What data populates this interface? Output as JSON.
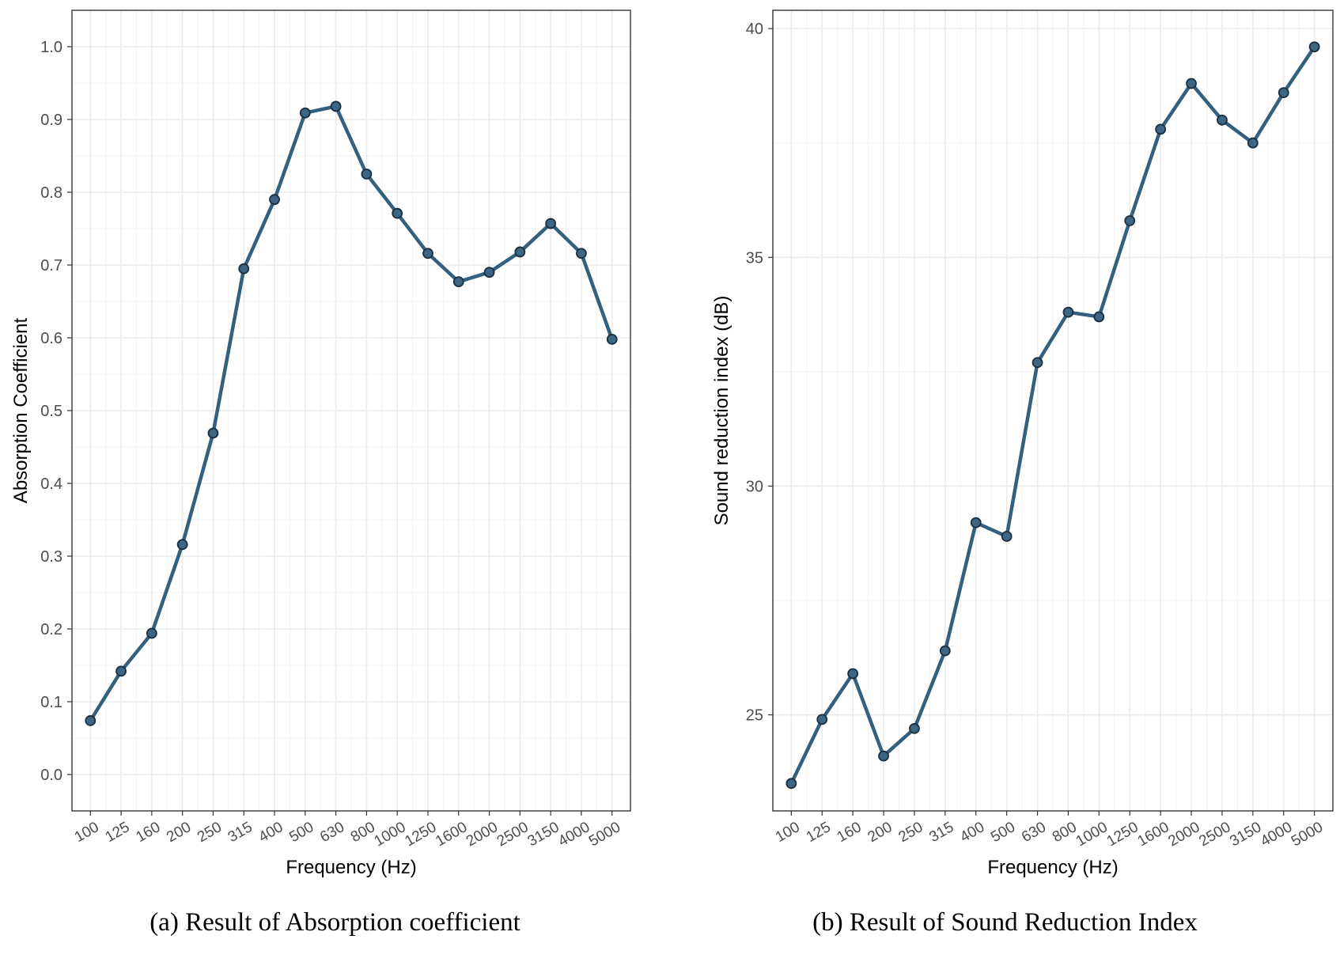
{
  "colors": {
    "line": "#34607f",
    "point_fill": "#3d6584",
    "point_stroke": "#1b2f3f",
    "grid": "#ebebeb",
    "tick_text": "#4d4d4d",
    "axis_title": "#000000"
  },
  "captions": {
    "a": "(a) Result of Absorption coefficient",
    "b": "(b) Result of Sound Reduction Index"
  },
  "chart_data": [
    {
      "type": "line",
      "title": "",
      "xlabel": "Frequency (Hz)",
      "ylabel": "Absorption Coefficient",
      "categories": [
        "100",
        "125",
        "160",
        "200",
        "250",
        "315",
        "400",
        "500",
        "630",
        "800",
        "1000",
        "1250",
        "1600",
        "2000",
        "2500",
        "3150",
        "4000",
        "5000"
      ],
      "series": [
        {
          "values": [
            0.074,
            0.142,
            0.194,
            0.316,
            0.469,
            0.695,
            0.79,
            0.909,
            0.918,
            0.825,
            0.771,
            0.716,
            0.677,
            0.69,
            0.718,
            0.757,
            0.716,
            0.598
          ]
        }
      ],
      "ylim": [
        -0.05,
        1.05
      ],
      "yticks": [
        0.0,
        0.1,
        0.2,
        0.3,
        0.4,
        0.5,
        0.6,
        0.7,
        0.8,
        0.9,
        1.0
      ],
      "ytick_labels": [
        "0.0",
        "0.1",
        "0.2",
        "0.3",
        "0.4",
        "0.5",
        "0.6",
        "0.7",
        "0.8",
        "0.9",
        "1.0"
      ],
      "grid": true,
      "legend": "none"
    },
    {
      "type": "line",
      "title": "",
      "xlabel": "Frequency (Hz)",
      "ylabel": "Sound reduction index (dB)",
      "categories": [
        "100",
        "125",
        "160",
        "200",
        "250",
        "315",
        "400",
        "500",
        "630",
        "800",
        "1000",
        "1250",
        "1600",
        "2000",
        "2500",
        "3150",
        "4000",
        "5000"
      ],
      "series": [
        {
          "values": [
            23.5,
            24.9,
            25.9,
            24.1,
            24.7,
            26.4,
            29.2,
            28.9,
            32.7,
            33.8,
            33.7,
            35.8,
            37.8,
            38.8,
            38.0,
            37.5,
            38.6,
            39.6
          ]
        }
      ],
      "ylim": [
        22.9,
        40.4
      ],
      "yticks": [
        25,
        30,
        35,
        40
      ],
      "ytick_labels": [
        "25",
        "30",
        "35",
        "40"
      ],
      "grid": true,
      "legend": "none"
    }
  ]
}
